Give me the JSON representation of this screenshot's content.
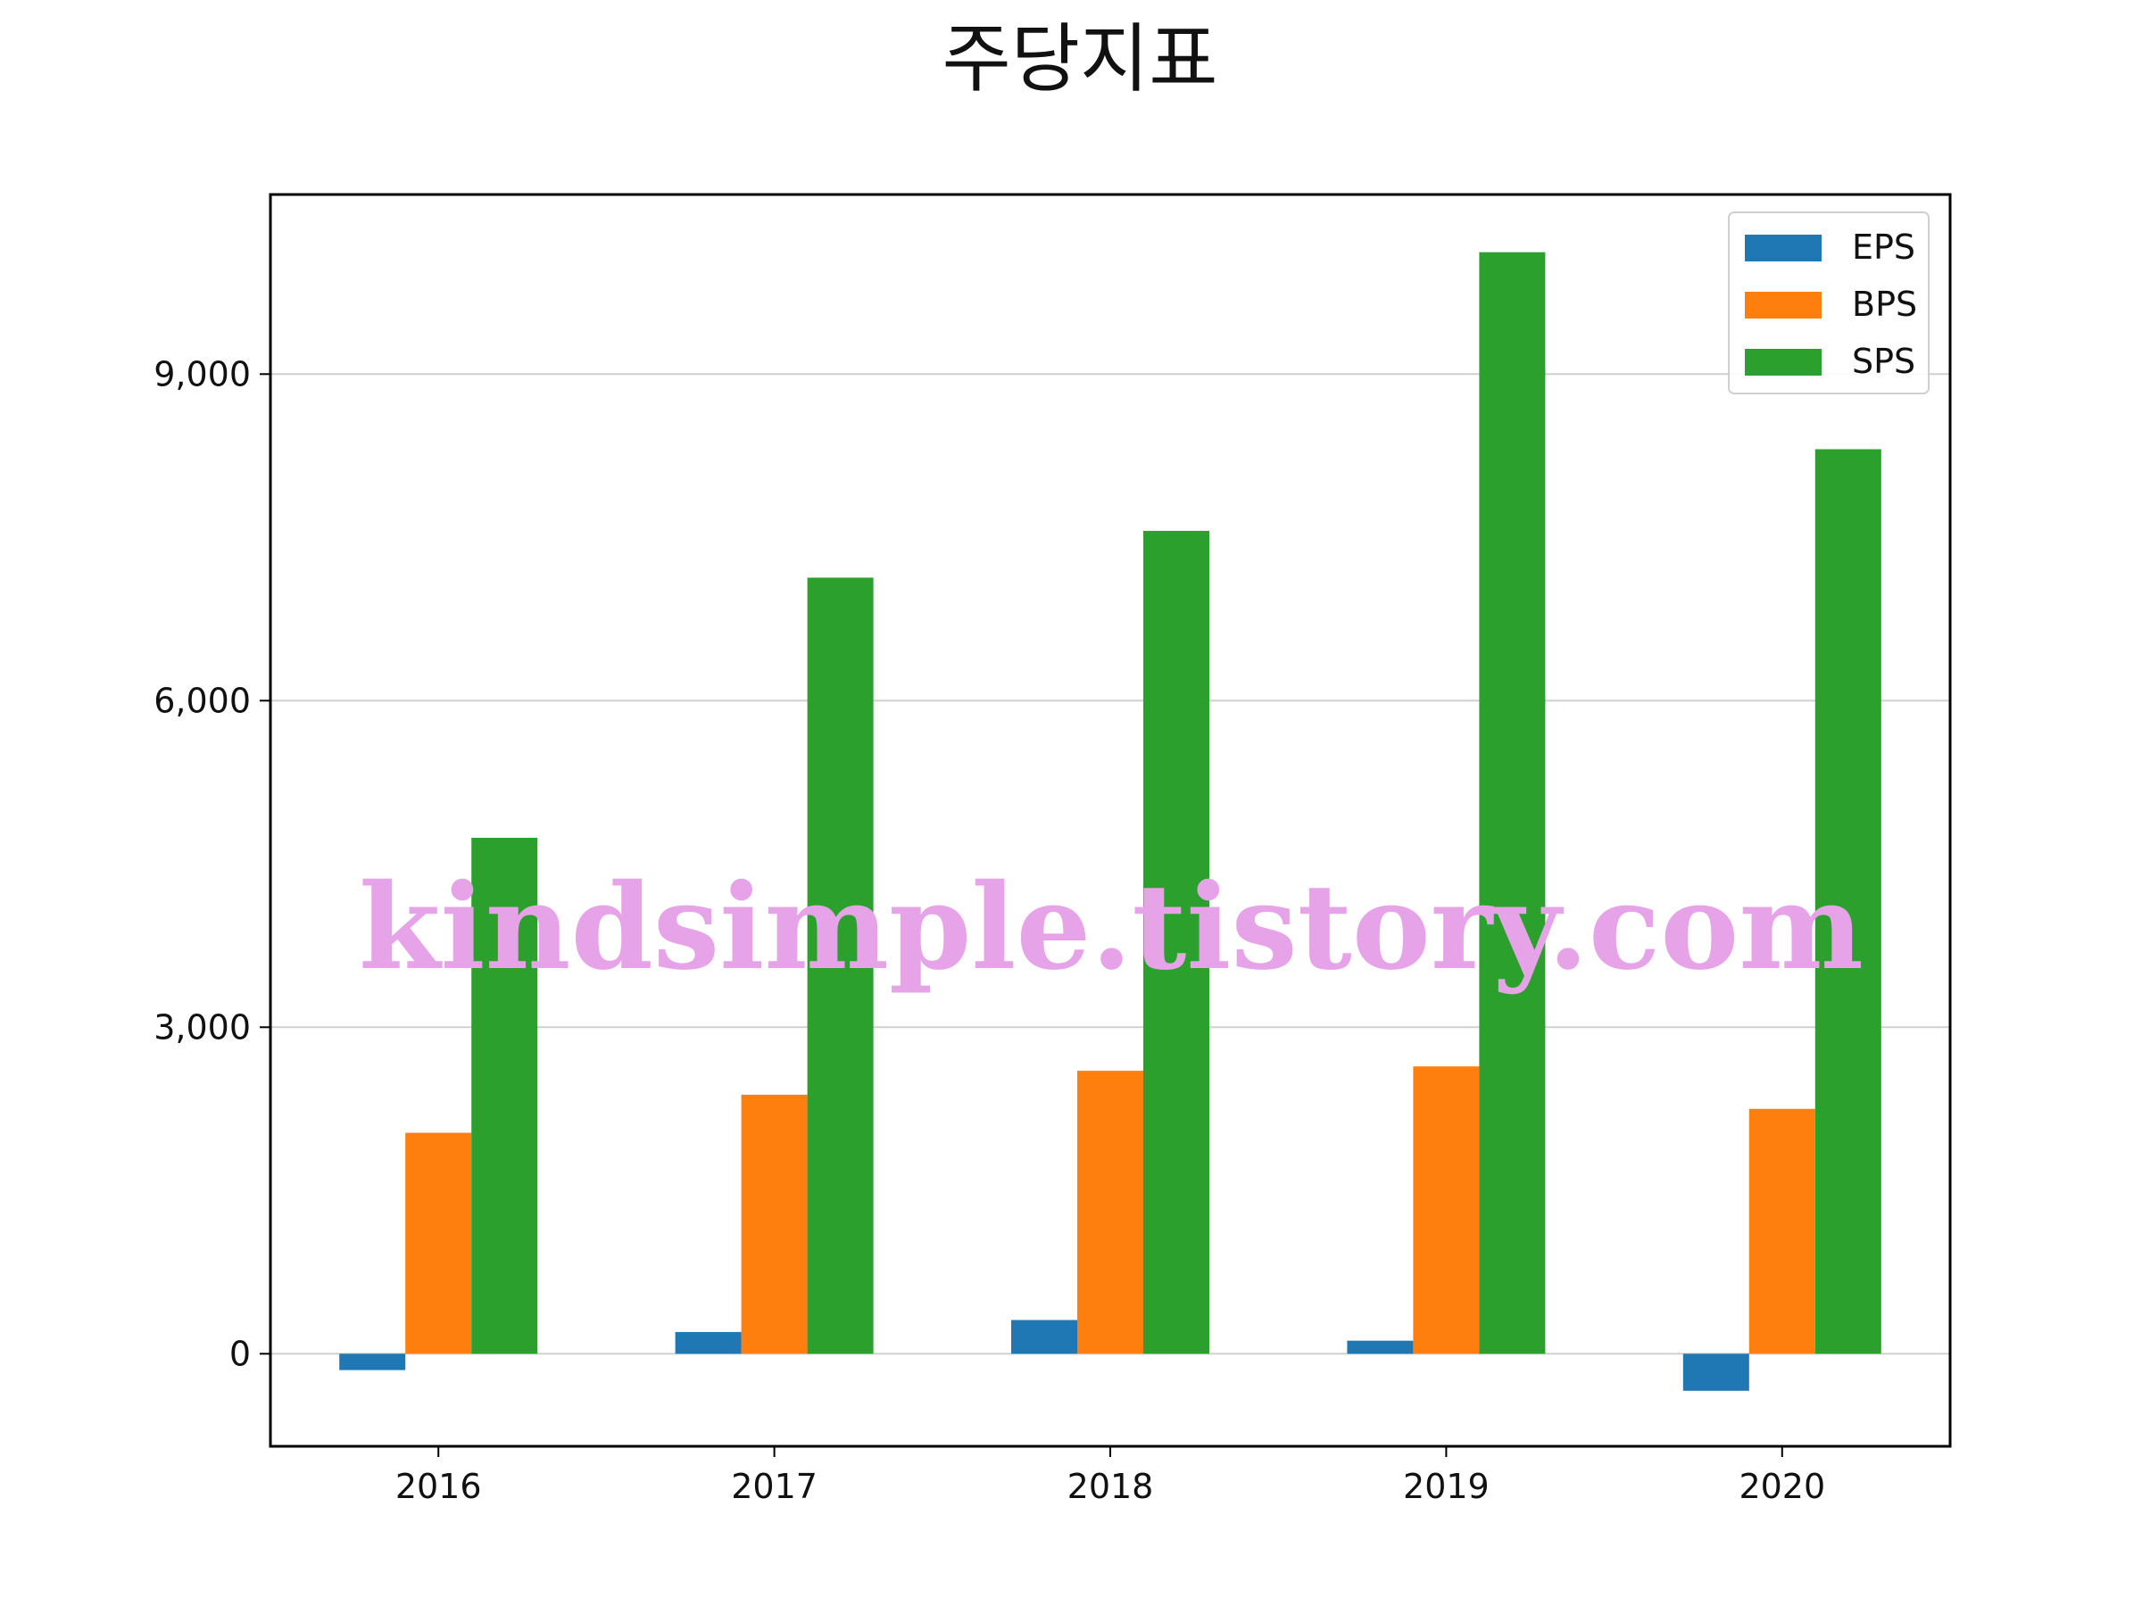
{
  "chart_data": {
    "type": "bar",
    "title": "주당지표",
    "xlabel": "",
    "ylabel": "",
    "categories": [
      "2016",
      "2017",
      "2018",
      "2019",
      "2020"
    ],
    "series": [
      {
        "name": "EPS",
        "color": "#1f77b4",
        "values": [
          -150,
          200,
          310,
          120,
          -340
        ]
      },
      {
        "name": "BPS",
        "color": "#ff7f0e",
        "values": [
          2030,
          2380,
          2600,
          2640,
          2250
        ]
      },
      {
        "name": "SPS",
        "color": "#2ca02c",
        "values": [
          4740,
          7130,
          7560,
          10120,
          8310
        ]
      }
    ],
    "ylim": [
      -850,
      10650
    ],
    "yticks": [
      0,
      3000,
      6000,
      9000
    ],
    "ytick_labels": [
      "0",
      "3,000",
      "6,000",
      "9,000"
    ],
    "grid": "y",
    "legend_position": "top-right"
  },
  "watermark": {
    "text": "kindsimple.tistory.com",
    "color": "#e6a3e8"
  }
}
